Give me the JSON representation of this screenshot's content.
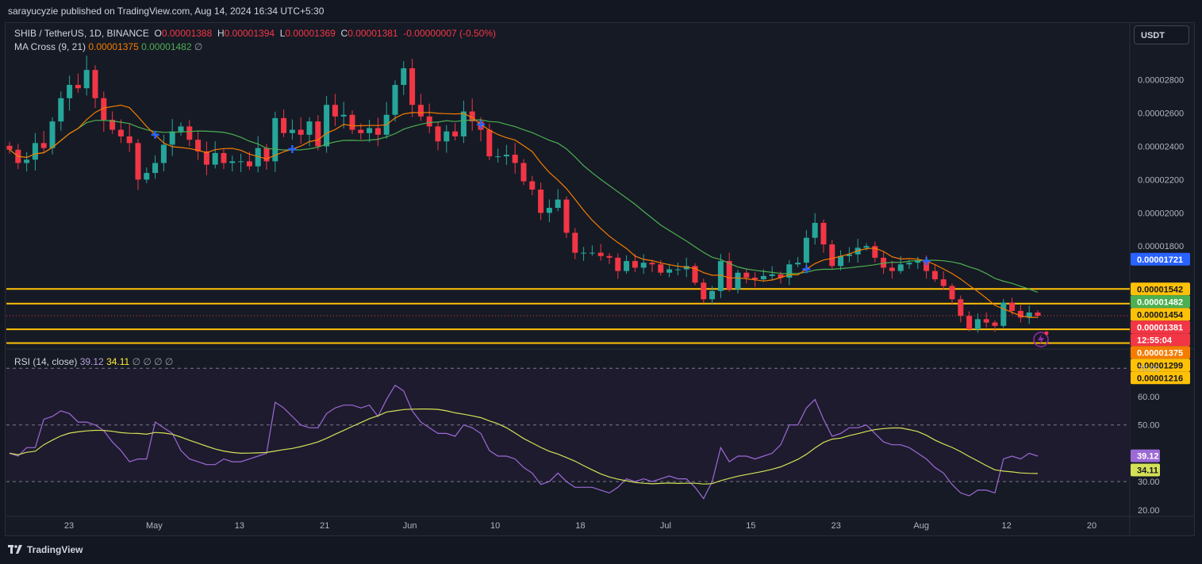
{
  "publisher": "sarayucyzie published on TradingView.com, Aug 14, 2024 16:34 UTC+5:30",
  "legend": {
    "symbol": "SHIB / TetherUS, 1D, BINANCE",
    "o_label": "O",
    "o_value": "0.00001388",
    "h_label": "H",
    "h_value": "0.00001394",
    "l_label": "L",
    "l_value": "0.00001369",
    "c_label": "C",
    "c_value": "0.00001381",
    "change": "-0.00000007 (-0.50%)",
    "ma_label": "MA Cross (9, 21)",
    "ma_fast": "0.00001375",
    "ma_slow": "0.00001482",
    "ma_extra": "∅"
  },
  "currency_button": "USDT",
  "rsi_legend": {
    "label": "RSI (14, close)",
    "rsi": "39.12",
    "ma": "34.11",
    "extra": "∅ ∅ ∅ ∅"
  },
  "footer": "TradingView",
  "colors": {
    "up": "#26a69a",
    "down": "#f23645",
    "ma_fast": "#f57c00",
    "ma_slow": "#4caf50",
    "rsi": "#9c6ad6",
    "rsi_ma": "#d4e157",
    "level": "#ffc107",
    "cross": "#2962ff"
  },
  "chart_data": [
    {
      "type": "candlestick",
      "title": "SHIB / TetherUS, 1D, BINANCE",
      "ylim": [
        1.19e-05,
        3.09e-05
      ],
      "y_ticks": [
        "0.00002800",
        "0.00002600",
        "0.00002400",
        "0.00002200",
        "0.00002000",
        "0.00001800"
      ],
      "x_ticks": [
        "23",
        "May",
        "13",
        "21",
        "Jun",
        "10",
        "18",
        "Jul",
        "15",
        "23",
        "Aug",
        "12",
        "20"
      ],
      "horizontal_levels": [
        1.542e-05,
        1.454e-05,
        1.299e-05,
        1.216e-05
      ],
      "price_labels": [
        {
          "text": "0.00001721",
          "color": "#2962ff",
          "value": 1.721e-05
        },
        {
          "text": "0.00001542",
          "color": "#ffc107",
          "value": 1.542e-05
        },
        {
          "text": "0.00001482",
          "color": "#4caf50",
          "value": 1.482e-05
        },
        {
          "text": "0.00001454",
          "color": "#ffc107",
          "value": 1.454e-05
        },
        {
          "text": "0.00001381",
          "color": "#f23645",
          "value": 1.381e-05
        },
        {
          "text": "12:55:04",
          "color": "#f23645",
          "value": 1.381e-05
        },
        {
          "text": "0.00001375",
          "color": "#f57c00",
          "value": 1.375e-05
        },
        {
          "text": "0.00001299",
          "color": "#ffc107",
          "value": 1.299e-05
        },
        {
          "text": "0.00001216",
          "color": "#ffc107",
          "value": 1.216e-05
        }
      ],
      "close": [
        2.38e-05,
        2.3e-05,
        2.32e-05,
        2.42e-05,
        2.39e-05,
        2.55e-05,
        2.69e-05,
        2.77e-05,
        2.75e-05,
        2.86e-05,
        2.69e-05,
        2.56e-05,
        2.5e-05,
        2.46e-05,
        2.42e-05,
        2.2e-05,
        2.24e-05,
        2.3e-05,
        2.41e-05,
        2.49e-05,
        2.52e-05,
        2.44e-05,
        2.37e-05,
        2.29e-05,
        2.36e-05,
        2.3e-05,
        2.31e-05,
        2.31e-05,
        2.28e-05,
        2.39e-05,
        2.31e-05,
        2.57e-05,
        2.48e-05,
        2.5e-05,
        2.47e-05,
        2.55e-05,
        2.4e-05,
        2.65e-05,
        2.58e-05,
        2.59e-05,
        2.5e-05,
        2.48e-05,
        2.51e-05,
        2.47e-05,
        2.59e-05,
        2.77e-05,
        2.87e-05,
        2.65e-05,
        2.58e-05,
        2.52e-05,
        2.43e-05,
        2.49e-05,
        2.46e-05,
        2.61e-05,
        2.55e-05,
        2.5e-05,
        2.34e-05,
        2.34e-05,
        2.35e-05,
        2.3e-05,
        2.19e-05,
        2.14e-05,
        2e-05,
        2.03e-05,
        2.08e-05,
        1.88e-05,
        1.76e-05,
        1.76e-05,
        1.76e-05,
        1.74e-05,
        1.73e-05,
        1.65e-05,
        1.71e-05,
        1.67e-05,
        1.7e-05,
        1.69e-05,
        1.64e-05,
        1.66e-05,
        1.66e-05,
        1.68e-05,
        1.58e-05,
        1.48e-05,
        1.53e-05,
        1.71e-05,
        1.54e-05,
        1.64e-05,
        1.61e-05,
        1.6e-05,
        1.62e-05,
        1.63e-05,
        1.61e-05,
        1.69e-05,
        1.7e-05,
        1.85e-05,
        1.94e-05,
        1.81e-05,
        1.68e-05,
        1.74e-05,
        1.75e-05,
        1.79e-05,
        1.8e-05,
        1.73e-05,
        1.67e-05,
        1.65e-05,
        1.69e-05,
        1.7e-05,
        1.71e-05,
        1.65e-05,
        1.6e-05,
        1.56e-05,
        1.48e-05,
        1.38e-05,
        1.3e-05,
        1.36e-05,
        1.34e-05,
        1.32e-05,
        1.46e-05,
        1.41e-05,
        1.37e-05,
        1.4e-05,
        1.381e-05
      ],
      "series": [
        {
          "name": "MA Cross fast (9)",
          "color": "#f57c00",
          "values": "computed"
        },
        {
          "name": "MA Cross slow (21)",
          "color": "#4caf50",
          "values": "computed"
        }
      ]
    },
    {
      "type": "line",
      "title": "RSI (14, close)",
      "ylim": [
        18,
        74
      ],
      "y_ticks": [
        "70.00",
        "60.00",
        "50.00",
        "30.00",
        "20.00"
      ],
      "bands": [
        30,
        50,
        70
      ],
      "current": [
        {
          "text": "39.12",
          "color": "#9c6ad6",
          "value": 39.12
        },
        {
          "text": "34.11",
          "color": "#d4e157",
          "value": 34.11
        }
      ],
      "series": [
        {
          "name": "RSI",
          "color": "#9c6ad6",
          "values": [
            40,
            39,
            42,
            42,
            52,
            53,
            55,
            54,
            51,
            51,
            50,
            48,
            44,
            41,
            37,
            38,
            38,
            51,
            49,
            47,
            41,
            38,
            37,
            36,
            36,
            38,
            37,
            37,
            38,
            39,
            40,
            58,
            56,
            53,
            50,
            49,
            49,
            54,
            56,
            57,
            57,
            56,
            57,
            53,
            59,
            64,
            62,
            55,
            51,
            49,
            47,
            47,
            46,
            50,
            49,
            47,
            41,
            39,
            39,
            38,
            35,
            33,
            29,
            30,
            33,
            30,
            28,
            28,
            28,
            27,
            26,
            28,
            31,
            30,
            31,
            30,
            31,
            32,
            31,
            31,
            28,
            24,
            30,
            42,
            37,
            39,
            39,
            38,
            39,
            40,
            43,
            50,
            50,
            56,
            59,
            52,
            46,
            47,
            49,
            49,
            50,
            47,
            44,
            43,
            43,
            42,
            40,
            38,
            35,
            33,
            29,
            26,
            25,
            27,
            27,
            26,
            38,
            39,
            38,
            40,
            39
          ]
        },
        {
          "name": "RSI MA",
          "color": "#d4e157",
          "values": "computed"
        }
      ]
    }
  ]
}
